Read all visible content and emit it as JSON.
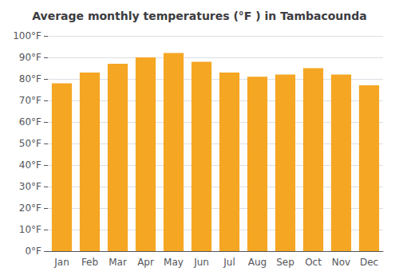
{
  "chart_data": {
    "type": "bar",
    "title": "Average monthly temperatures (°F ) in Tambacounda",
    "categories": [
      "Jan",
      "Feb",
      "Mar",
      "Apr",
      "May",
      "Jun",
      "Jul",
      "Aug",
      "Sep",
      "Oct",
      "Nov",
      "Dec"
    ],
    "values": [
      78,
      83,
      87,
      90,
      92,
      88,
      83,
      81,
      82,
      85,
      82,
      77
    ],
    "color": "#F5A623",
    "ylim": [
      0,
      100
    ],
    "yticks": [
      {
        "value": 0,
        "label": "0°F"
      },
      {
        "value": 10,
        "label": "10°F"
      },
      {
        "value": 20,
        "label": "20°F"
      },
      {
        "value": 30,
        "label": "30°F"
      },
      {
        "value": 40,
        "label": "40°F"
      },
      {
        "value": 50,
        "label": "50°F"
      },
      {
        "value": 60,
        "label": "60°F"
      },
      {
        "value": 70,
        "label": "70°F"
      },
      {
        "value": 80,
        "label": "80°F"
      },
      {
        "value": 90,
        "label": "90°F"
      },
      {
        "value": 100,
        "label": "100°F"
      }
    ],
    "grid": true
  }
}
